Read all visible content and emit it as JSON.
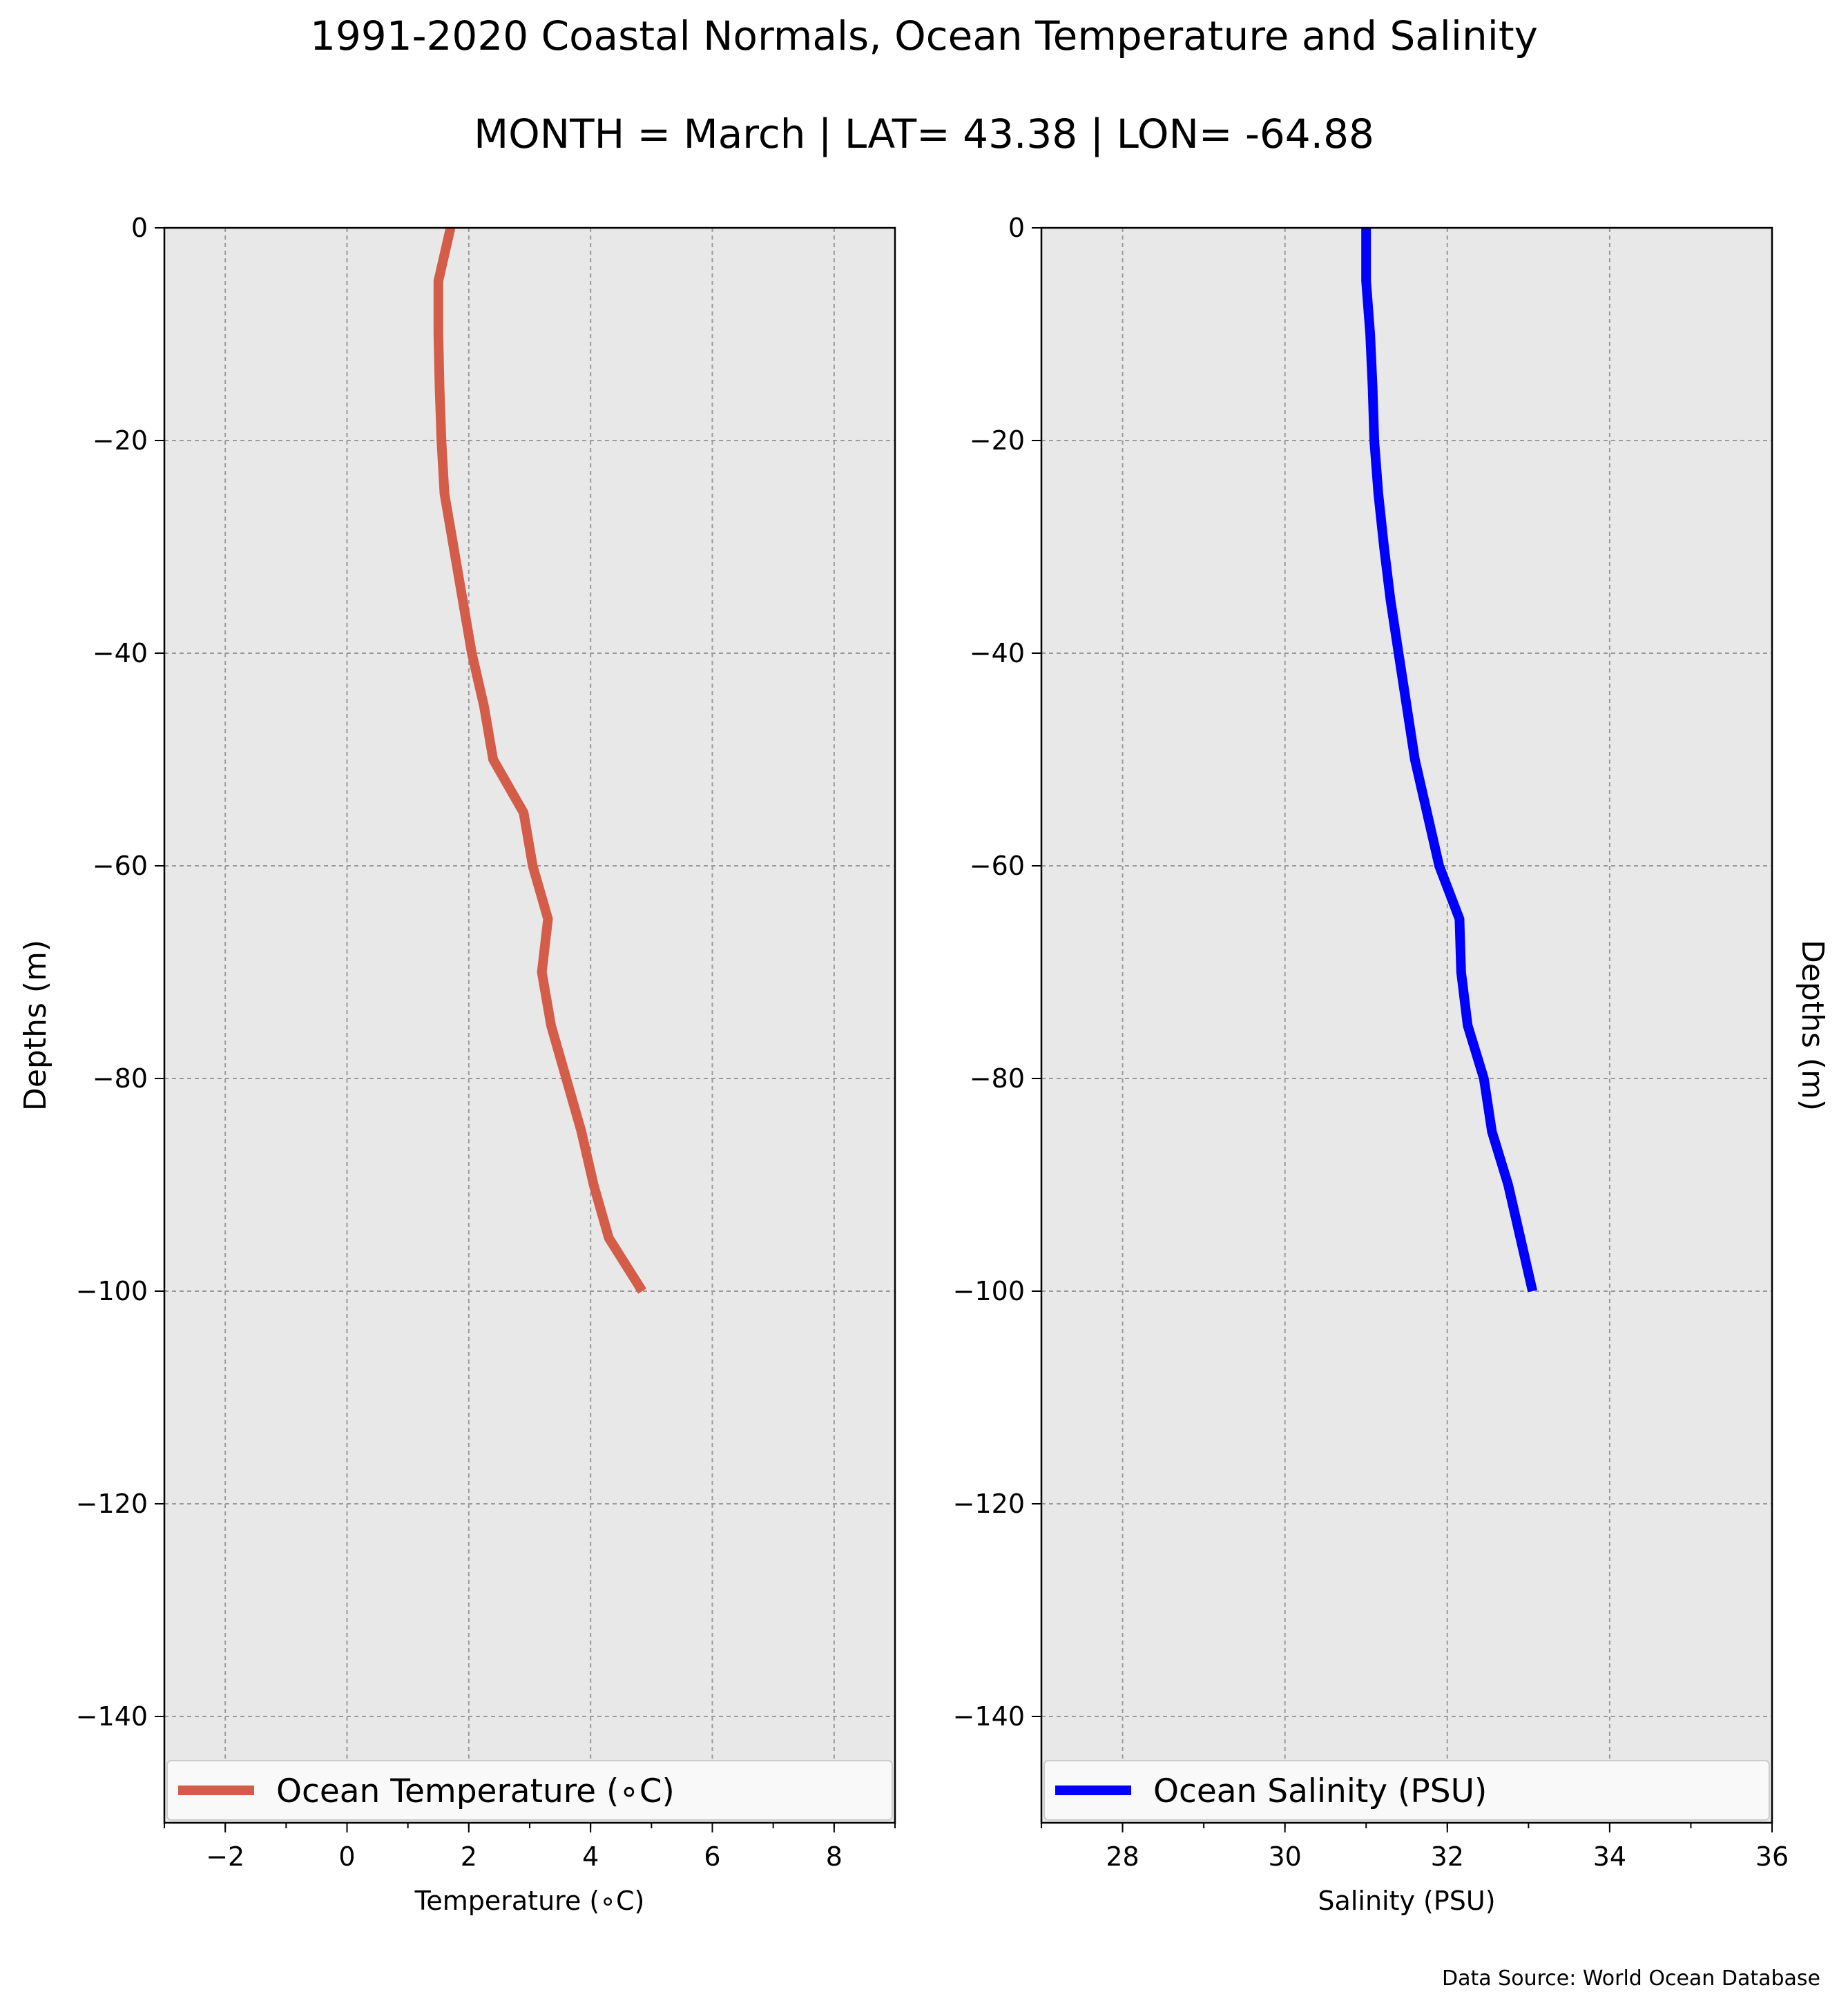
{
  "figure": {
    "title": "1991-2020 Coastal Normals, Ocean Temperature and Salinity",
    "subtitle": "MONTH = March | LAT= 43.38 | LON= -64.88",
    "source": "Data Source: World Ocean Database",
    "grid": true,
    "plot_background": "#e8e8e8"
  },
  "chart_data": [
    {
      "type": "line",
      "xlabel": "Temperature (∘C)",
      "ylabel": "Depths (m)",
      "ylabel_side": "left",
      "xlim": [
        -3,
        9
      ],
      "ylim": [
        -150,
        0
      ],
      "xticks": [
        -2,
        0,
        2,
        4,
        6,
        8
      ],
      "yticks": [
        0,
        -20,
        -40,
        -60,
        -80,
        -100,
        -120,
        -140
      ],
      "legend_position": "bottom",
      "series": [
        {
          "name": "Ocean Temperature (∘C)",
          "color": "#d45d4a",
          "x": [
            1.7,
            1.5,
            1.5,
            1.52,
            1.55,
            1.6,
            1.75,
            1.9,
            2.05,
            2.25,
            2.4,
            2.9,
            3.05,
            3.3,
            3.2,
            3.35,
            3.6,
            3.85,
            4.05,
            4.3,
            4.85
          ],
          "y": [
            0,
            -5,
            -10,
            -15,
            -20,
            -25,
            -30,
            -35,
            -40,
            -45,
            -50,
            -55,
            -60,
            -65,
            -70,
            -75,
            -80,
            -85,
            -90,
            -95,
            -100
          ]
        }
      ]
    },
    {
      "type": "line",
      "xlabel": "Salinity (PSU)",
      "ylabel": "Depths (m)",
      "ylabel_side": "right",
      "xlim": [
        27,
        36
      ],
      "ylim": [
        -150,
        0
      ],
      "xticks": [
        28,
        30,
        32,
        34,
        36
      ],
      "yticks": [
        0,
        -20,
        -40,
        -60,
        -80,
        -100,
        -120,
        -140
      ],
      "legend_position": "bottom",
      "series": [
        {
          "name": "Ocean Salinity (PSU)",
          "color": "#0000ff",
          "x": [
            31.0,
            31.0,
            31.05,
            31.08,
            31.1,
            31.15,
            31.22,
            31.3,
            31.4,
            31.5,
            31.6,
            31.75,
            31.9,
            32.15,
            32.17,
            32.25,
            32.45,
            32.55,
            32.75,
            32.9,
            33.05
          ],
          "y": [
            0,
            -5,
            -10,
            -15,
            -20,
            -25,
            -30,
            -35,
            -40,
            -45,
            -50,
            -55,
            -60,
            -65,
            -70,
            -75,
            -80,
            -85,
            -90,
            -95,
            -100
          ]
        }
      ]
    }
  ]
}
